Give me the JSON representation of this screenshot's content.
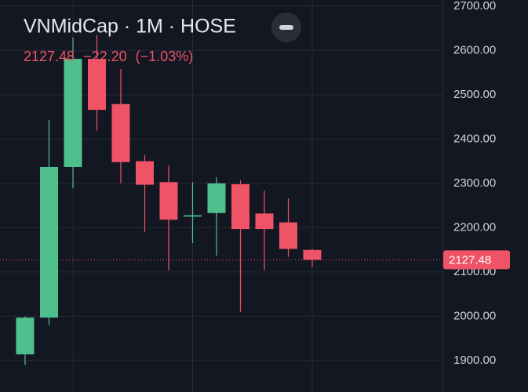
{
  "chart_data": {
    "type": "candlestick",
    "title": "VNMidCap · 1M · HOSE",
    "last_price": 2127.48,
    "change": {
      "value": -22.2,
      "label": "−22.20"
    },
    "change_pct": {
      "value": -1.03,
      "label": "(−1.03%)"
    },
    "up_color": "#4fbf8e",
    "down_color": "#ef5366",
    "ylim": [
      1829,
      2714
    ],
    "yticks": [
      {
        "value": 1900,
        "label": "1900.00"
      },
      {
        "value": 2000,
        "label": "2000.00"
      },
      {
        "value": 2100,
        "label": "2100.00"
      },
      {
        "value": 2200,
        "label": "2200.00"
      },
      {
        "value": 2300,
        "label": "2300.00"
      },
      {
        "value": 2400,
        "label": "2400.00"
      },
      {
        "value": 2500,
        "label": "2500.00"
      },
      {
        "value": 2600,
        "label": "2600.00"
      },
      {
        "value": 2700,
        "label": "2700.00"
      }
    ],
    "grid": true,
    "open": [
      1914,
      1997,
      2337,
      2581,
      2479,
      2350,
      2303,
      2225,
      2233,
      2298,
      2232,
      2212,
      2149.68
    ],
    "high": [
      2000,
      2443,
      2629,
      2635,
      2558,
      2364,
      2341,
      2303,
      2314,
      2307,
      2284,
      2266,
      2152
    ],
    "low": [
      1890,
      1980,
      2289,
      2419,
      2300,
      2190,
      2104,
      2165,
      2137,
      2010,
      2104,
      2134,
      2112
    ],
    "close": [
      1997,
      2337,
      2581,
      2466,
      2348,
      2297,
      2218,
      2228,
      2300,
      2197,
      2197,
      2152,
      2127.48
    ]
  }
}
